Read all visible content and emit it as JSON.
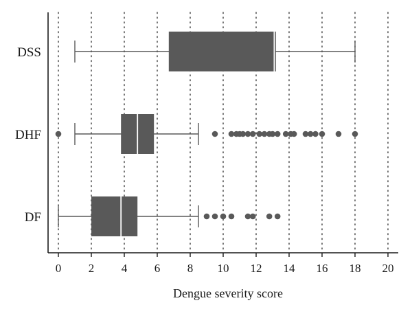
{
  "chart_data": {
    "type": "boxplot",
    "orientation": "horizontal",
    "title": "",
    "xlabel": "Dengue severity score",
    "ylabel": "",
    "xlim": [
      0,
      20
    ],
    "xticks": [
      0,
      2,
      4,
      6,
      8,
      10,
      12,
      14,
      16,
      18,
      20
    ],
    "grid": "vertical dotted",
    "categories": [
      "DSS",
      "DHF",
      "DF"
    ],
    "series": [
      {
        "category": "DSS",
        "whisker_low": 1,
        "q1": 6.7,
        "median": 13.1,
        "q3": 13.2,
        "whisker_high": 18,
        "outliers": []
      },
      {
        "category": "DHF",
        "whisker_low": 1,
        "q1": 3.8,
        "median": 4.8,
        "q3": 5.8,
        "whisker_high": 8.5,
        "outliers": [
          0,
          9.5,
          10.5,
          10.8,
          11,
          11.2,
          11.5,
          11.8,
          12.2,
          12.5,
          12.8,
          13,
          13.3,
          13.8,
          14.1,
          14.3,
          15,
          15.3,
          15.6,
          16,
          17,
          18
        ]
      },
      {
        "category": "DF",
        "whisker_low": 0,
        "q1": 2,
        "median": 3.8,
        "q3": 4.8,
        "whisker_high": 8.5,
        "outliers": [
          9,
          9.5,
          10,
          10.5,
          11.5,
          11.8,
          12.8,
          13.3
        ]
      }
    ],
    "colors": {
      "box": "#595959",
      "median": "#ffffff",
      "whisker": "#595959",
      "outlier": "#595959",
      "grid": "#555555",
      "axis": "#1a1a1a"
    }
  }
}
